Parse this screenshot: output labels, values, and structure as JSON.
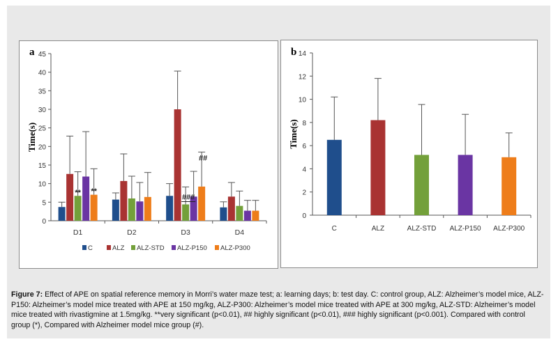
{
  "figure": {
    "caption_label": "Figure 7:",
    "caption_text": " Effect of APE on spatial reference memory in Morri’s water maze test; a: learning days; b: test day. C: control group, ALZ: Alzheimer’s model mice, ALZ-P150: Alzheimer’s model mice treated with APE at 150 mg/kg, ALZ-P300: Alzheimer’s model mice treated with APE at 300 mg/kg, ALZ-STD: Alzheimer’s model mice treated with rivastigmine at 1.5mg/kg. **very significant (p<0.01), ## highly significant (p<0.01), ### highly significant (p<0.001). Compared with control group (*), Compared with Alzheimer model mice group (#)."
  },
  "colors": {
    "C": "#1f4e8c",
    "ALZ": "#a93332",
    "ALZ-STD": "#73a03a",
    "ALZ-P150": "#6a35a3",
    "ALZ-P300": "#ee7d1a",
    "background": "#e9e9e9"
  },
  "chart_data": [
    {
      "panel": "a",
      "type": "bar",
      "ylabel": "Time(s)",
      "ylim": [
        0,
        45
      ],
      "yticks": [
        0,
        5,
        10,
        15,
        20,
        25,
        30,
        35,
        40,
        45
      ],
      "categories": [
        "D1",
        "D2",
        "D3",
        "D4"
      ],
      "legend_position": "bottom",
      "series": [
        {
          "name": "C",
          "values": [
            3.7,
            5.7,
            6.7,
            3.6
          ],
          "errors": [
            1.3,
            1.8,
            3.3,
            1.5
          ]
        },
        {
          "name": "ALZ",
          "values": [
            12.6,
            10.7,
            30.0,
            6.5
          ],
          "errors": [
            10.2,
            7.3,
            10.3,
            3.8
          ]
        },
        {
          "name": "ALZ-STD",
          "values": [
            6.7,
            6.0,
            4.4,
            4.0
          ],
          "errors": [
            6.5,
            6.0,
            4.7,
            4.0
          ]
        },
        {
          "name": "ALZ-P150",
          "values": [
            11.9,
            5.2,
            6.5,
            2.7
          ],
          "errors": [
            12.1,
            5.1,
            6.8,
            2.8
          ]
        },
        {
          "name": "ALZ-P300",
          "values": [
            7.0,
            6.4,
            9.2,
            2.7
          ],
          "errors": [
            7.0,
            6.6,
            9.3,
            2.8
          ]
        }
      ],
      "annotations": [
        {
          "text": "**",
          "category": "D1",
          "series": "ALZ-STD"
        },
        {
          "text": "**",
          "category": "D1",
          "series": "ALZ-P300"
        },
        {
          "text": "###",
          "category": "D3",
          "series": "ALZ-STD"
        },
        {
          "text": "##",
          "category": "D3",
          "series": "ALZ-P300"
        }
      ]
    },
    {
      "panel": "b",
      "type": "bar",
      "ylabel": "Time(s)",
      "ylim": [
        0,
        14
      ],
      "yticks": [
        0,
        2,
        4,
        6,
        8,
        10,
        12,
        14
      ],
      "categories": [
        "C",
        "ALZ",
        "ALZ-STD",
        "ALZ-P150",
        "ALZ-P300"
      ],
      "values": [
        6.5,
        8.2,
        5.2,
        5.2,
        5.0
      ],
      "errors": [
        3.7,
        3.6,
        4.35,
        3.5,
        2.1
      ]
    }
  ]
}
